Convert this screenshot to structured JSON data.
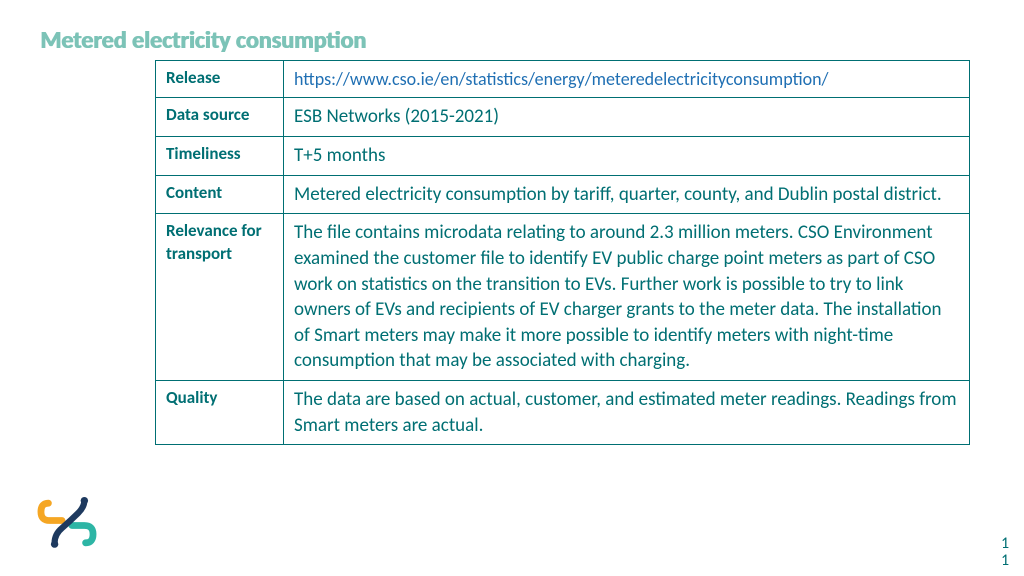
{
  "title": "Metered electricity consumption",
  "table": {
    "rows": [
      {
        "label": "Release",
        "value": "https://www.cso.ie/en/statistics/energy/meteredelectricityconsumption/",
        "is_link": true
      },
      {
        "label": "Data source",
        "value": "ESB Networks (2015-2021)",
        "is_link": false
      },
      {
        "label": "Timeliness",
        "value": "T+5 months",
        "is_link": false
      },
      {
        "label": "Content",
        "value": "Metered electricity consumption by tariff, quarter, county, and Dublin postal district.",
        "is_link": false
      },
      {
        "label": "Relevance for transport",
        "value": "The file contains microdata relating to around 2.3 million meters. CSO Environment examined the customer file to identify EV public charge point meters as part of CSO work on statistics on the transition to EVs. Further work is possible to try to link owners of EVs and recipients of EV charger grants to the meter data. The installation of Smart meters may make it more possible to identify meters with night-time consumption that may be associated with charging.",
        "is_link": false
      },
      {
        "label": "Quality",
        "value": "The data are based on actual, customer, and estimated meter readings. Readings from Smart meters are actual.",
        "is_link": false
      }
    ],
    "border_color": "#006f73",
    "label_color": "#006f73",
    "value_color": "#006f73",
    "link_color": "#1f6fb3"
  },
  "page_number_top": "1",
  "page_number_bottom": "1",
  "colors": {
    "title": "#7cc3b7",
    "teal": "#006f73",
    "logo_orange": "#f5a623",
    "logo_teal": "#2db5a5",
    "logo_navy": "#1e3a5f"
  }
}
